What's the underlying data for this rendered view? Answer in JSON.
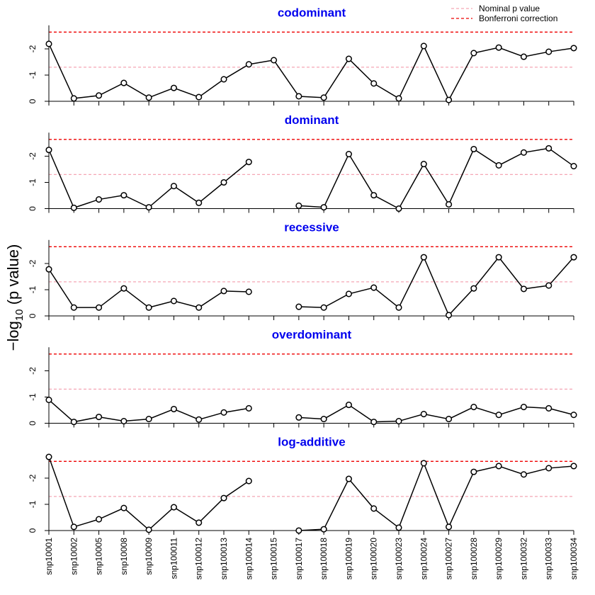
{
  "figure": {
    "ylabel": {
      "main": "−log",
      "sub": "10",
      "rest": " (p value)"
    },
    "legend": [
      {
        "label": "Nominal p value",
        "color": "#f4a6b4"
      },
      {
        "label": "Bonferroni correction",
        "color": "#ee0000"
      }
    ]
  },
  "chart_data": [
    {
      "type": "line",
      "title": "codominant",
      "color": "#000000",
      "ylim": [
        0,
        2.9
      ],
      "yticks": [
        0,
        {
          "value": 1,
          "label": "-1"
        },
        {
          "value": 2,
          "label": "-2"
        }
      ],
      "hlines": [
        1.3,
        2.64
      ],
      "values": [
        2.19,
        0.11,
        0.22,
        0.7,
        0.14,
        0.51,
        0.16,
        0.84,
        1.41,
        1.57,
        0.19,
        0.14,
        1.62,
        0.68,
        0.11,
        2.11,
        0.05,
        1.84,
        2.05,
        1.7,
        1.89,
        2.03
      ]
    },
    {
      "type": "line",
      "title": "dominant",
      "color": "#000000",
      "ylim": [
        0,
        2.9
      ],
      "yticks": [
        0,
        {
          "value": 1,
          "label": "-1"
        },
        {
          "value": 2,
          "label": "-2"
        }
      ],
      "hlines": [
        1.3,
        2.64
      ],
      "values": [
        2.24,
        0.03,
        0.35,
        0.51,
        0.05,
        0.86,
        0.22,
        1.0,
        1.78,
        null,
        0.11,
        0.05,
        2.08,
        0.51,
        0,
        1.7,
        0.16,
        2.27,
        1.65,
        2.14,
        2.3,
        1.62
      ]
    },
    {
      "type": "line",
      "title": "recessive",
      "color": "#000000",
      "ylim": [
        0,
        2.9
      ],
      "yticks": [
        0,
        {
          "value": 1,
          "label": "-1"
        },
        {
          "value": 2,
          "label": "-2"
        }
      ],
      "hlines": [
        1.3,
        2.64
      ],
      "values": [
        1.78,
        0.32,
        0.32,
        1.05,
        0.32,
        0.57,
        0.32,
        0.95,
        0.92,
        null,
        0.35,
        0.32,
        0.84,
        1.08,
        0.32,
        2.24,
        0.03,
        1.05,
        2.24,
        1.03,
        1.16,
        2.24
      ]
    },
    {
      "type": "line",
      "title": "overdominant",
      "color": "#000000",
      "ylim": [
        0,
        2.9
      ],
      "yticks": [
        0,
        {
          "value": 1,
          "label": "-1"
        },
        {
          "value": 2,
          "label": "-2"
        }
      ],
      "hlines": [
        1.3,
        2.64
      ],
      "values": [
        0.89,
        0.05,
        0.24,
        0.08,
        0.16,
        0.54,
        0.14,
        0.41,
        0.57,
        null,
        0.22,
        0.16,
        0.7,
        0.05,
        0.08,
        0.35,
        0.16,
        0.62,
        0.32,
        0.62,
        0.57,
        0.32
      ]
    },
    {
      "type": "line",
      "title": "log-additive",
      "color": "#000000",
      "ylim": [
        0,
        2.9
      ],
      "yticks": [
        0,
        {
          "value": 1,
          "label": "-1"
        },
        {
          "value": 2,
          "label": "-2"
        }
      ],
      "hlines": [
        1.3,
        2.64
      ],
      "categories": [
        "snp10001",
        "snp10002",
        "snp10005",
        "snp10008",
        "snp10009",
        "snp100011",
        "snp100012",
        "snp100013",
        "snp100014",
        "snp100015",
        "snp100017",
        "snp100018",
        "snp100019",
        "snp100020",
        "snp100023",
        "snp100024",
        "snp100027",
        "snp100028",
        "snp100029",
        "snp100032",
        "snp100033",
        "snp100034"
      ],
      "values": [
        2.81,
        0.14,
        0.43,
        0.86,
        0.03,
        0.89,
        0.3,
        1.24,
        1.89,
        null,
        0,
        0.05,
        1.97,
        0.84,
        0.11,
        2.57,
        0.14,
        2.24,
        2.46,
        2.14,
        2.38,
        2.46
      ]
    }
  ]
}
